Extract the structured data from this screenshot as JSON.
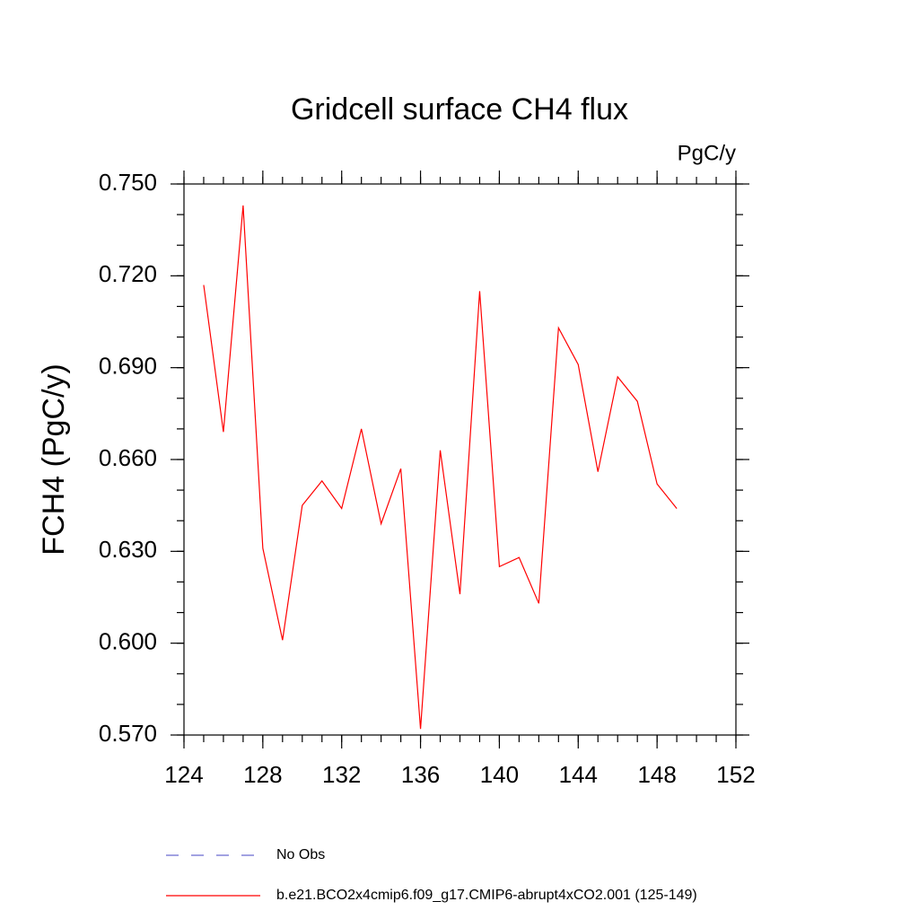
{
  "chart_data": {
    "type": "line",
    "title": "Gridcell surface CH4 flux",
    "units": "PgC/y",
    "ylabel": "FCH4  (PgC/y)",
    "x": [
      125,
      126,
      127,
      128,
      129,
      130,
      131,
      132,
      133,
      134,
      135,
      136,
      137,
      138,
      139,
      140,
      141,
      142,
      143,
      144,
      145,
      146,
      147,
      148,
      149
    ],
    "series": [
      {
        "name": "No Obs",
        "color": "#6b6bd0",
        "dashed": true,
        "values": [
          null,
          null,
          null,
          null,
          null,
          null,
          null,
          null,
          null,
          null,
          null,
          null,
          null,
          null,
          null,
          null,
          null,
          null,
          null,
          null,
          null,
          null,
          null,
          null,
          null
        ]
      },
      {
        "name": "b.e21.BCO2x4cmip6.f09_g17.CMIP6-abrupt4xCO2.001 (125-149)",
        "color": "#ff0000",
        "dashed": false,
        "values": [
          0.717,
          0.669,
          0.743,
          0.631,
          0.601,
          0.645,
          0.653,
          0.644,
          0.67,
          0.639,
          0.657,
          0.572,
          0.663,
          0.616,
          0.715,
          0.625,
          0.628,
          0.613,
          0.703,
          0.691,
          0.656,
          0.687,
          0.679,
          0.652,
          0.644
        ]
      }
    ],
    "xlim": [
      124,
      152
    ],
    "xticks": [
      124,
      128,
      132,
      136,
      140,
      144,
      148,
      152
    ],
    "xminor": 1,
    "ylim": [
      0.57,
      0.75
    ],
    "yticks": [
      {
        "value": 0.57,
        "label": "0.570"
      },
      {
        "value": 0.6,
        "label": "0.600"
      },
      {
        "value": 0.63,
        "label": "0.630"
      },
      {
        "value": 0.66,
        "label": "0.660"
      },
      {
        "value": 0.69,
        "label": "0.690"
      },
      {
        "value": 0.72,
        "label": "0.720"
      },
      {
        "value": 0.75,
        "label": "0.750"
      }
    ],
    "yminor": 0.01
  }
}
